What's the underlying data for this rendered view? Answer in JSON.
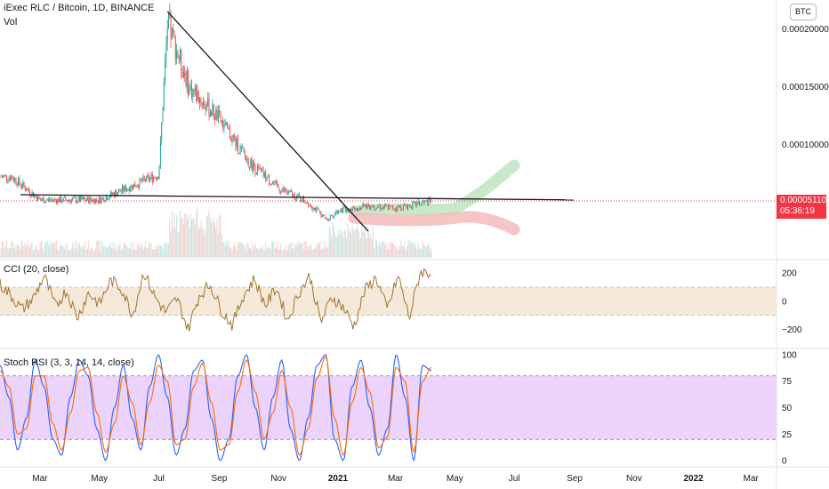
{
  "header": {
    "symbol_title": "iExec RLC / Bitcoin, 1D, BINANCE",
    "volume_label": "Vol",
    "currency_button": "BTC"
  },
  "price_badge": {
    "price": "0.00005110",
    "countdown": "05:36:19"
  },
  "colors": {
    "up": "#26a69a",
    "down": "#ef5350",
    "cci_line": "#a0742d",
    "cci_band": "#f5e9d9",
    "stoch_k": "#2962ff",
    "stoch_d": "#ff6d00",
    "stoch_band": "#e4c4fb",
    "green_projection": "#b9e3bb",
    "red_projection": "#f4b6b6",
    "current_price_line": "#f23645"
  },
  "chart_data": [
    {
      "type": "candlestick",
      "pane": "price",
      "title": "iExec RLC / Bitcoin, 1D, BINANCE",
      "x": [
        "2020-02",
        "2020-03",
        "2020-05",
        "2020-07",
        "2020-07-10",
        "2020-08",
        "2020-09",
        "2020-10",
        "2020-11",
        "2020-12",
        "2020-12-20",
        "2021-01",
        "2021-02",
        "2021-03",
        "2021-04-10"
      ],
      "close": [
        7.2e-05,
        5.2e-05,
        5.2e-05,
        7.4e-05,
        0.000205,
        0.00015,
        0.000122,
        8.5e-05,
        6.2e-05,
        5e-05,
        3.5e-05,
        4.3e-05,
        4.7e-05,
        4.5e-05,
        5.11e-05
      ],
      "y_ticks": [
        "0.00020000",
        "0.00015000",
        "0.00010000"
      ],
      "y_tick_values": [
        0.0002,
        0.00015,
        0.0001
      ],
      "last_price": 5.11e-05,
      "x_tick_labels": [
        "Mar",
        "May",
        "Jul",
        "Sep",
        "Nov",
        "2021",
        "Mar",
        "May",
        "Jul",
        "Sep",
        "Nov",
        "2022",
        "Mar"
      ],
      "drawings": [
        {
          "kind": "trendline-down",
          "from": [
            "2020-07-10",
            0.000215
          ],
          "to": [
            "2021-02-01",
            2.5e-05
          ]
        },
        {
          "kind": "horizontal-support",
          "from": [
            "2020-02-10",
            5.65e-05
          ],
          "to": [
            "2021-08-31",
            5.2e-05
          ]
        },
        {
          "kind": "projection-up",
          "color": "green"
        },
        {
          "kind": "projection-down",
          "color": "red"
        }
      ]
    },
    {
      "type": "line",
      "pane": "indicator",
      "title": "CCI (20, close)",
      "y_ticks": [
        "200",
        "0",
        "−200"
      ],
      "y_tick_values": [
        200,
        0,
        -200
      ],
      "band": [
        -100,
        100
      ],
      "ylim": [
        -330,
        290
      ],
      "series": [
        {
          "values": [
            120,
            40,
            -60,
            20,
            180,
            -40,
            80,
            -120,
            60,
            -20,
            150,
            90,
            -100,
            210,
            30,
            -80,
            20,
            -200,
            40,
            120,
            -60,
            -170,
            40,
            160,
            -30,
            100,
            -140,
            60,
            180,
            -150,
            30,
            -40,
            -180,
            80,
            170,
            -60,
            180,
            -120,
            210,
            200
          ]
        }
      ]
    },
    {
      "type": "line",
      "pane": "indicator",
      "title": "Stoch RSI (3, 3, 14, 14, close)",
      "y_ticks": [
        "100",
        "75",
        "50",
        "25",
        "0"
      ],
      "y_tick_values": [
        100,
        75,
        50,
        25,
        0
      ],
      "band": [
        20,
        80
      ],
      "ylim": [
        -5,
        105
      ],
      "series": [
        {
          "values": [
            90,
            60,
            10,
            40,
            95,
            70,
            20,
            5,
            60,
            95,
            80,
            30,
            0,
            50,
            90,
            40,
            10,
            70,
            100,
            60,
            5,
            30,
            85,
            95,
            40,
            0,
            20,
            80,
            100,
            50,
            10,
            60,
            95,
            30,
            0,
            40,
            90,
            100,
            20,
            0,
            70,
            95,
            50,
            5,
            30,
            100,
            60,
            0,
            90,
            85
          ]
        },
        {
          "values": [
            85,
            70,
            25,
            30,
            80,
            80,
            35,
            10,
            45,
            85,
            88,
            45,
            8,
            35,
            80,
            55,
            15,
            55,
            90,
            75,
            15,
            20,
            70,
            92,
            55,
            10,
            15,
            65,
            95,
            65,
            20,
            45,
            85,
            50,
            5,
            30,
            78,
            98,
            40,
            5,
            55,
            88,
            65,
            12,
            22,
            88,
            75,
            8,
            75,
            88
          ]
        }
      ]
    }
  ]
}
